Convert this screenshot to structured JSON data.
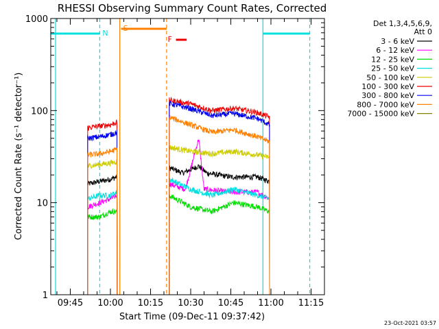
{
  "chart_data": {
    "type": "line",
    "title": "RHESSI Observing Summary Count Rates, Corrected",
    "xlabel": "Start Time (09-Dec-11 09:37:42)",
    "ylabel": "Corrected Count Rate (s⁻¹ detector⁻¹)",
    "yscale": "log",
    "ylim": [
      1,
      1000
    ],
    "xlim": [
      "09:37:42",
      "11:20:00"
    ],
    "x_ticks": [
      "09:45",
      "10:00",
      "10:15",
      "10:30",
      "10:45",
      "11:00",
      "11:15"
    ],
    "y_ticks": [
      "1",
      "10",
      "100",
      "1000"
    ],
    "footer_date": "23-Oct-2021 03:57",
    "legend": {
      "header": [
        "Det 1,3,4,5,6,9,",
        "Att 0"
      ],
      "placement": "right"
    },
    "flags": [
      {
        "label": "N",
        "color": "#00e0e0",
        "segments": [
          [
            "09:37:42",
            "09:56:00"
          ],
          [
            "10:57:00",
            "11:14:30"
          ]
        ]
      },
      {
        "label": "S",
        "color": "#ff8000",
        "segments": [
          [
            "10:04:00",
            "10:21:00"
          ]
        ]
      },
      {
        "label": "F",
        "color": "#ee0000",
        "segments": [
          [
            "10:24:30",
            "10:28:30"
          ]
        ]
      }
    ],
    "vertical_lines": [
      {
        "time": "09:39:30",
        "color": "#00e0e0",
        "style": "solid"
      },
      {
        "time": "09:56:00",
        "color": "#00e0e0",
        "style": "dashed"
      },
      {
        "time": "10:03:30",
        "color": "#ff8000",
        "style": "solid"
      },
      {
        "time": "10:21:00",
        "color": "#ff8000",
        "style": "dashed"
      },
      {
        "time": "10:57:00",
        "color": "#00e0e0",
        "style": "solid"
      },
      {
        "time": "11:14:30",
        "color": "#00e0e0",
        "style": "dashed"
      }
    ],
    "series": [
      {
        "name": "3 - 6 keV",
        "color": "#000000",
        "seg1": [
          [
            "09:51:30",
            16
          ],
          [
            "09:56:00",
            17
          ],
          [
            "10:00:00",
            18
          ],
          [
            "10:02:30",
            19
          ]
        ],
        "seg2": [
          [
            "10:22:00",
            24
          ],
          [
            "10:27:00",
            21
          ],
          [
            "10:33:00",
            25
          ],
          [
            "10:36:00",
            21
          ],
          [
            "10:45:00",
            19
          ],
          [
            "10:55:00",
            19
          ],
          [
            "10:59:30",
            17
          ]
        ]
      },
      {
        "name": "6 - 12 keV",
        "color": "#ff00ff",
        "seg1": [
          [
            "09:51:30",
            9
          ],
          [
            "09:56:00",
            10
          ],
          [
            "10:00:00",
            11
          ],
          [
            "10:02:30",
            12
          ]
        ],
        "seg2": [
          [
            "10:22:00",
            16
          ],
          [
            "10:28:00",
            14
          ],
          [
            "10:33:00",
            50
          ],
          [
            "10:35:00",
            14
          ],
          [
            "10:45:00",
            13
          ],
          [
            "10:55:00",
            13
          ],
          [
            "10:59:30",
            11
          ]
        ]
      },
      {
        "name": "12 - 25 keV",
        "color": "#00dd00",
        "seg1": [
          [
            "09:51:30",
            7
          ],
          [
            "09:56:00",
            7
          ],
          [
            "10:00:00",
            8
          ],
          [
            "10:02:30",
            8
          ]
        ],
        "seg2": [
          [
            "10:22:00",
            12
          ],
          [
            "10:30:00",
            9
          ],
          [
            "10:38:00",
            8
          ],
          [
            "10:46:00",
            10
          ],
          [
            "10:55:00",
            9
          ],
          [
            "10:59:30",
            8
          ]
        ]
      },
      {
        "name": "25 - 50 keV",
        "color": "#00e0e0",
        "seg1": [
          [
            "09:51:30",
            11
          ],
          [
            "09:56:00",
            12
          ],
          [
            "10:00:00",
            12
          ],
          [
            "10:02:30",
            13
          ]
        ],
        "seg2": [
          [
            "10:22:00",
            18
          ],
          [
            "10:30:00",
            14
          ],
          [
            "10:38:00",
            12
          ],
          [
            "10:46:00",
            14
          ],
          [
            "10:55:00",
            12
          ],
          [
            "10:59:30",
            11
          ]
        ]
      },
      {
        "name": "50 - 100 keV",
        "color": "#cccc00",
        "seg1": [
          [
            "09:51:30",
            25
          ],
          [
            "09:56:00",
            26
          ],
          [
            "10:00:00",
            27
          ],
          [
            "10:02:30",
            28
          ]
        ],
        "seg2": [
          [
            "10:22:00",
            40
          ],
          [
            "10:30:00",
            36
          ],
          [
            "10:38:00",
            34
          ],
          [
            "10:46:00",
            36
          ],
          [
            "10:55:00",
            33
          ],
          [
            "10:59:30",
            31
          ]
        ]
      },
      {
        "name": "100 - 300 keV",
        "color": "#ee0000",
        "seg1": [
          [
            "09:51:30",
            65
          ],
          [
            "09:56:00",
            68
          ],
          [
            "10:00:00",
            70
          ],
          [
            "10:02:30",
            75
          ]
        ],
        "seg2": [
          [
            "10:22:00",
            130
          ],
          [
            "10:30:00",
            118
          ],
          [
            "10:38:00",
            100
          ],
          [
            "10:46:00",
            106
          ],
          [
            "10:55:00",
            95
          ],
          [
            "10:59:30",
            85
          ]
        ]
      },
      {
        "name": "300 - 800 keV",
        "color": "#0000ee",
        "seg1": [
          [
            "09:51:30",
            50
          ],
          [
            "09:56:00",
            52
          ],
          [
            "10:00:00",
            55
          ],
          [
            "10:02:30",
            58
          ]
        ],
        "seg2": [
          [
            "10:22:00",
            120
          ],
          [
            "10:30:00",
            105
          ],
          [
            "10:38:00",
            88
          ],
          [
            "10:46:00",
            93
          ],
          [
            "10:55:00",
            82
          ],
          [
            "10:59:30",
            70
          ]
        ]
      },
      {
        "name": "800 - 7000 keV",
        "color": "#ff8000",
        "seg1": [
          [
            "09:51:30",
            33
          ],
          [
            "09:56:00",
            34
          ],
          [
            "10:00:00",
            36
          ],
          [
            "10:02:30",
            38
          ]
        ],
        "seg2": [
          [
            "10:22:00",
            85
          ],
          [
            "10:30:00",
            70
          ],
          [
            "10:38:00",
            58
          ],
          [
            "10:46:00",
            62
          ],
          [
            "10:55:00",
            52
          ],
          [
            "10:59:30",
            46
          ]
        ]
      },
      {
        "name": "7000 - 15000 keV",
        "color": "#808000",
        "seg1": [],
        "seg2": []
      }
    ]
  }
}
